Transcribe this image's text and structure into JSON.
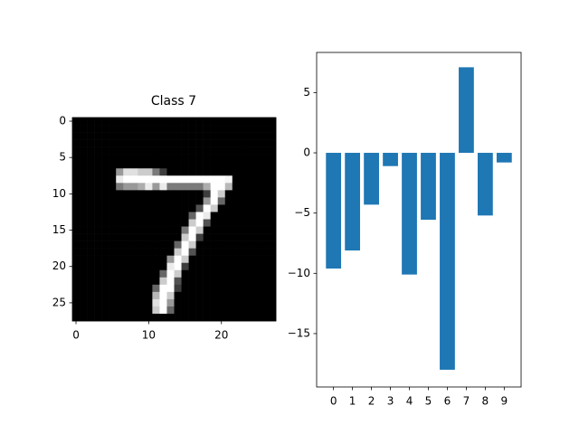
{
  "chart_data": [
    {
      "type": "image",
      "title": "Class 7",
      "cmap": "gray",
      "xlim": [
        -0.5,
        27.5
      ],
      "ylim": [
        27.5,
        -0.5
      ],
      "xticks": [
        0,
        10,
        20
      ],
      "yticks": [
        0,
        5,
        10,
        15,
        20,
        25
      ],
      "pixels": [
        [
          0,
          0,
          0,
          0,
          0,
          0,
          0,
          0,
          0,
          0,
          0,
          0,
          0,
          0,
          0,
          0,
          0,
          0,
          0,
          0,
          0,
          0,
          0,
          0,
          0,
          0,
          0,
          0
        ],
        [
          0,
          0,
          0,
          0,
          0,
          0,
          0,
          0,
          0,
          0,
          0,
          0,
          0,
          0,
          0,
          0,
          0,
          0,
          0,
          0,
          0,
          0,
          0,
          0,
          0,
          0,
          0,
          0
        ],
        [
          0,
          0,
          0,
          0,
          0,
          0,
          0,
          0,
          0,
          0,
          0,
          0,
          0,
          0,
          0,
          0,
          0,
          0,
          0,
          0,
          0,
          0,
          0,
          0,
          0,
          0,
          0,
          0
        ],
        [
          0,
          0,
          0,
          0,
          0,
          0,
          0,
          0,
          0,
          0,
          0,
          0,
          0,
          0,
          0,
          0,
          0,
          0,
          0,
          0,
          0,
          0,
          0,
          0,
          0,
          0,
          0,
          0
        ],
        [
          0,
          0,
          0,
          0,
          0,
          0,
          0,
          0,
          0,
          0,
          0,
          0,
          0,
          0,
          0,
          0,
          0,
          0,
          0,
          0,
          0,
          0,
          0,
          0,
          0,
          0,
          0,
          0
        ],
        [
          0,
          0,
          0,
          0,
          0,
          0,
          0,
          0,
          0,
          0,
          0,
          0,
          0,
          0,
          0,
          0,
          0,
          0,
          0,
          0,
          0,
          0,
          0,
          0,
          0,
          0,
          0,
          0
        ],
        [
          0,
          0,
          0,
          0,
          0,
          0,
          0,
          0,
          0,
          0,
          0,
          0,
          0,
          0,
          0,
          0,
          0,
          0,
          0,
          0,
          0,
          0,
          0,
          0,
          0,
          0,
          0,
          0
        ],
        [
          0,
          0,
          0,
          0,
          0,
          0,
          150,
          220,
          220,
          200,
          200,
          120,
          60,
          0,
          0,
          0,
          0,
          0,
          0,
          0,
          0,
          0,
          0,
          0,
          0,
          0,
          0,
          0
        ],
        [
          0,
          0,
          0,
          0,
          0,
          0,
          230,
          250,
          250,
          250,
          250,
          250,
          250,
          250,
          250,
          250,
          250,
          250,
          250,
          250,
          250,
          240,
          0,
          0,
          0,
          0,
          0,
          0
        ],
        [
          0,
          0,
          0,
          0,
          0,
          0,
          120,
          150,
          150,
          170,
          230,
          150,
          230,
          120,
          120,
          120,
          120,
          120,
          170,
          250,
          250,
          180,
          0,
          0,
          0,
          0,
          0,
          0
        ],
        [
          0,
          0,
          0,
          0,
          0,
          0,
          0,
          0,
          0,
          0,
          0,
          0,
          0,
          0,
          0,
          0,
          0,
          0,
          60,
          250,
          200,
          0,
          0,
          0,
          0,
          0,
          0,
          0
        ],
        [
          0,
          0,
          0,
          0,
          0,
          0,
          0,
          0,
          0,
          0,
          0,
          0,
          0,
          0,
          0,
          0,
          0,
          0,
          150,
          250,
          100,
          0,
          0,
          0,
          0,
          0,
          0,
          0
        ],
        [
          0,
          0,
          0,
          0,
          0,
          0,
          0,
          0,
          0,
          0,
          0,
          0,
          0,
          0,
          0,
          0,
          0,
          80,
          250,
          200,
          0,
          0,
          0,
          0,
          0,
          0,
          0,
          0
        ],
        [
          0,
          0,
          0,
          0,
          0,
          0,
          0,
          0,
          0,
          0,
          0,
          0,
          0,
          0,
          0,
          0,
          100,
          250,
          230,
          0,
          0,
          0,
          0,
          0,
          0,
          0,
          0,
          0
        ],
        [
          0,
          0,
          0,
          0,
          0,
          0,
          0,
          0,
          0,
          0,
          0,
          0,
          0,
          0,
          0,
          0,
          200,
          250,
          80,
          0,
          0,
          0,
          0,
          0,
          0,
          0,
          0,
          0
        ],
        [
          0,
          0,
          0,
          0,
          0,
          0,
          0,
          0,
          0,
          0,
          0,
          0,
          0,
          0,
          0,
          120,
          250,
          200,
          0,
          0,
          0,
          0,
          0,
          0,
          0,
          0,
          0,
          0
        ],
        [
          0,
          0,
          0,
          0,
          0,
          0,
          0,
          0,
          0,
          0,
          0,
          0,
          0,
          0,
          0,
          200,
          250,
          60,
          0,
          0,
          0,
          0,
          0,
          0,
          0,
          0,
          0,
          0
        ],
        [
          0,
          0,
          0,
          0,
          0,
          0,
          0,
          0,
          0,
          0,
          0,
          0,
          0,
          0,
          100,
          250,
          200,
          0,
          0,
          0,
          0,
          0,
          0,
          0,
          0,
          0,
          0,
          0
        ],
        [
          0,
          0,
          0,
          0,
          0,
          0,
          0,
          0,
          0,
          0,
          0,
          0,
          0,
          0,
          200,
          250,
          80,
          0,
          0,
          0,
          0,
          0,
          0,
          0,
          0,
          0,
          0,
          0
        ],
        [
          0,
          0,
          0,
          0,
          0,
          0,
          0,
          0,
          0,
          0,
          0,
          0,
          0,
          150,
          250,
          200,
          0,
          0,
          0,
          0,
          0,
          0,
          0,
          0,
          0,
          0,
          0,
          0
        ],
        [
          0,
          0,
          0,
          0,
          0,
          0,
          0,
          0,
          0,
          0,
          0,
          0,
          0,
          230,
          250,
          60,
          0,
          0,
          0,
          0,
          0,
          0,
          0,
          0,
          0,
          0,
          0,
          0
        ],
        [
          0,
          0,
          0,
          0,
          0,
          0,
          0,
          0,
          0,
          0,
          0,
          0,
          100,
          250,
          200,
          0,
          0,
          0,
          0,
          0,
          0,
          0,
          0,
          0,
          0,
          0,
          0,
          0
        ],
        [
          0,
          0,
          0,
          0,
          0,
          0,
          0,
          0,
          0,
          0,
          0,
          0,
          200,
          250,
          80,
          0,
          0,
          0,
          0,
          0,
          0,
          0,
          0,
          0,
          0,
          0,
          0,
          0
        ],
        [
          0,
          0,
          0,
          0,
          0,
          0,
          0,
          0,
          0,
          0,
          0,
          100,
          250,
          250,
          60,
          0,
          0,
          0,
          0,
          0,
          0,
          0,
          0,
          0,
          0,
          0,
          0,
          0
        ],
        [
          0,
          0,
          0,
          0,
          0,
          0,
          0,
          0,
          0,
          0,
          0,
          180,
          250,
          200,
          0,
          0,
          0,
          0,
          0,
          0,
          0,
          0,
          0,
          0,
          0,
          0,
          0,
          0
        ],
        [
          0,
          0,
          0,
          0,
          0,
          0,
          0,
          0,
          0,
          0,
          0,
          220,
          250,
          150,
          0,
          0,
          0,
          0,
          0,
          0,
          0,
          0,
          0,
          0,
          0,
          0,
          0,
          0
        ],
        [
          0,
          0,
          0,
          0,
          0,
          0,
          0,
          0,
          0,
          0,
          0,
          200,
          250,
          100,
          0,
          0,
          0,
          0,
          0,
          0,
          0,
          0,
          0,
          0,
          0,
          0,
          0,
          0
        ],
        [
          0,
          0,
          0,
          0,
          0,
          0,
          0,
          0,
          0,
          0,
          0,
          0,
          0,
          0,
          0,
          0,
          0,
          0,
          0,
          0,
          0,
          0,
          0,
          0,
          0,
          0,
          0,
          0
        ]
      ]
    },
    {
      "type": "bar",
      "color": "#1f77b4",
      "x": [
        0,
        1,
        2,
        3,
        4,
        5,
        6,
        7,
        8,
        9
      ],
      "values": [
        -9.6,
        -8.1,
        -4.3,
        -1.1,
        -10.1,
        -5.55,
        -18.0,
        7.1,
        -5.2,
        -0.8
      ],
      "xlim": [
        -0.89,
        9.89
      ],
      "xticks": [
        0,
        1,
        2,
        3,
        4,
        5,
        6,
        7,
        8,
        9
      ],
      "ylim": [
        -19.43,
        8.33
      ],
      "yticks": [
        {
          "value": -15,
          "label": "−15"
        },
        {
          "value": -10,
          "label": "−10"
        },
        {
          "value": -5,
          "label": "−5"
        },
        0,
        5
      ]
    }
  ]
}
